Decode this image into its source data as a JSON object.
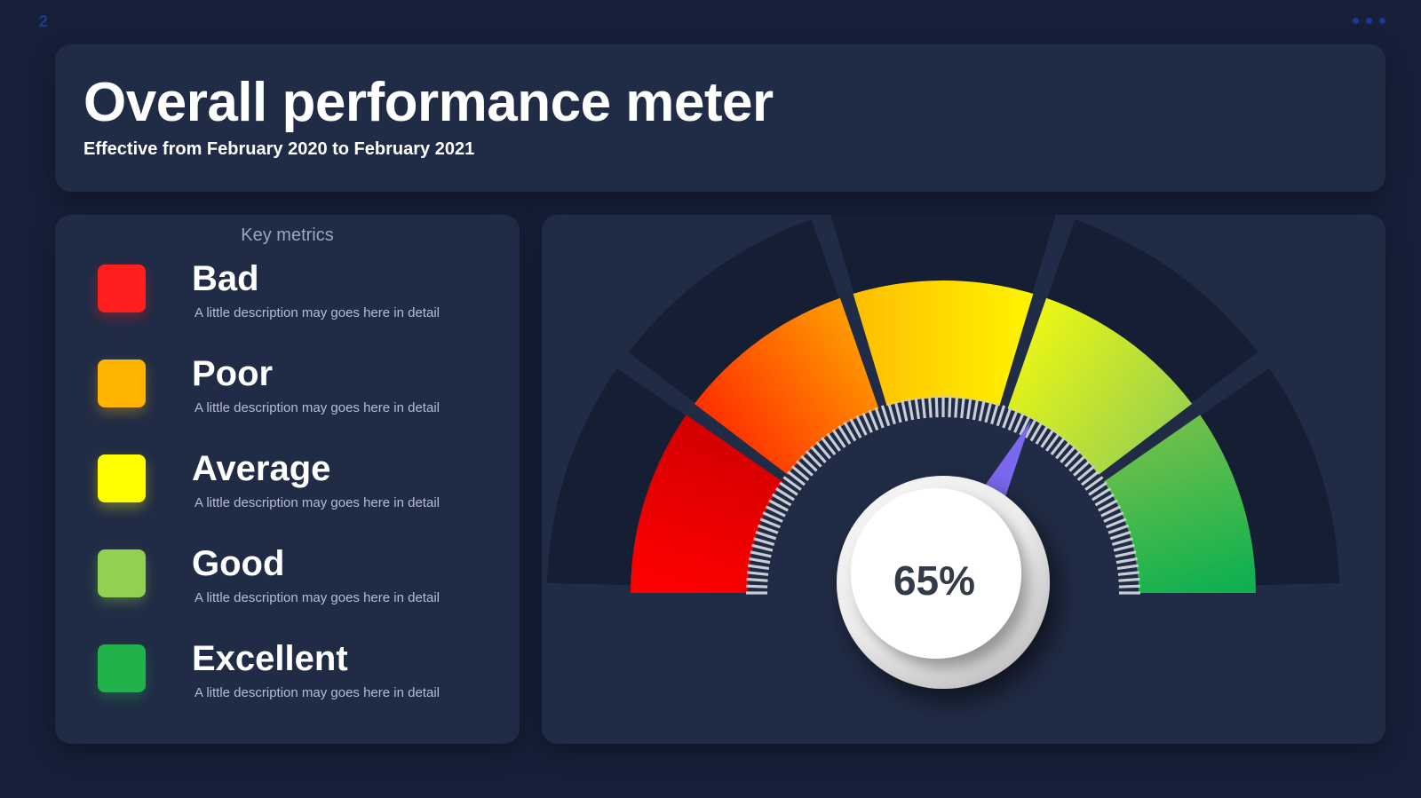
{
  "slide": {
    "number": "2"
  },
  "header": {
    "title": "Overall performance meter",
    "subtitle": "Effective from February 2020 to February 2021"
  },
  "metrics": {
    "heading": "Key metrics",
    "items": [
      {
        "label": "Bad",
        "description": "A little description may goes here in detail",
        "color": "#ff1f1f"
      },
      {
        "label": "Poor",
        "description": "A little description may goes here in detail",
        "color": "#ffb400"
      },
      {
        "label": "Average",
        "description": "A little description may goes here in detail",
        "color": "#ffff00"
      },
      {
        "label": "Good",
        "description": "A little description may goes here in detail",
        "color": "#92d050"
      },
      {
        "label": "Excellent",
        "description": "A little description may goes here in detail",
        "color": "#21b24b"
      }
    ]
  },
  "chart_data": {
    "type": "gauge",
    "value": 65,
    "value_label": "65%",
    "min": 0,
    "max": 100,
    "bands": [
      {
        "name": "Bad",
        "from": 0,
        "to": 20,
        "colors": [
          "#ff0000",
          "#d40000"
        ]
      },
      {
        "name": "Poor",
        "from": 20,
        "to": 40,
        "colors": [
          "#ff3300",
          "#ff9900"
        ]
      },
      {
        "name": "Average",
        "from": 40,
        "to": 60,
        "colors": [
          "#ffc000",
          "#fff200"
        ]
      },
      {
        "name": "Good",
        "from": 60,
        "to": 80,
        "colors": [
          "#e8f516",
          "#9fd44a"
        ]
      },
      {
        "name": "Excellent",
        "from": 80,
        "to": 100,
        "colors": [
          "#6cc04a",
          "#10b050"
        ]
      }
    ],
    "needle_color": "#7b68ee"
  }
}
